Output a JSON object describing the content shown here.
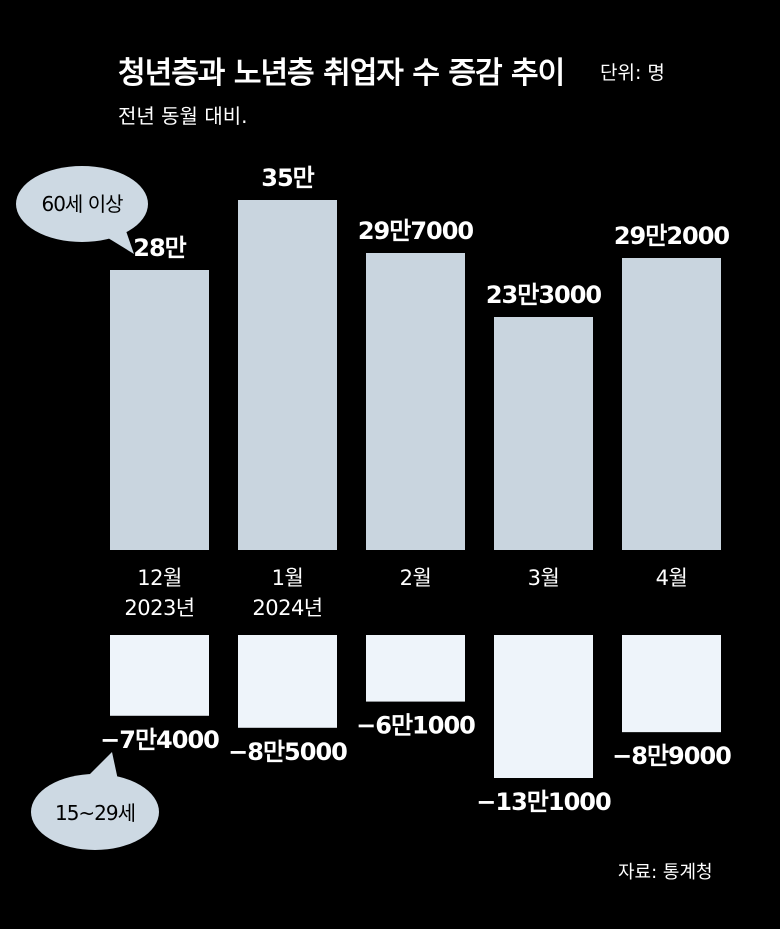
{
  "header": {
    "title": "청년층과 노년층 취업자 수 증감 추이",
    "unit": "단위: 명",
    "subtitle": "전년 동월 대비.",
    "source": "자료: 통계청"
  },
  "colors": {
    "background": "#000000",
    "senior_bar": "#c9d5df",
    "youth_bar": "#eef4fa",
    "bubble": "#cdd9e3",
    "text": "#ffffff"
  },
  "chart_data": {
    "type": "bar",
    "categories": [
      "12월\n2023년",
      "1월\n2024년",
      "2월",
      "3월",
      "4월"
    ],
    "series": [
      {
        "name": "60세 이상",
        "values": [
          280000,
          350000,
          297000,
          233000,
          292000
        ],
        "labels": [
          "28만",
          "35만",
          "29만7000",
          "23만3000",
          "29만2000"
        ]
      },
      {
        "name": "15~29세",
        "values": [
          -74000,
          -85000,
          -61000,
          -131000,
          -89000
        ],
        "labels": [
          "−7만4000",
          "−8만5000",
          "−6만1000",
          "−13만1000",
          "−8만9000"
        ]
      }
    ],
    "title": "청년층과 노년층 취업자 수 증감 추이",
    "legend": "callout-bubbles"
  }
}
